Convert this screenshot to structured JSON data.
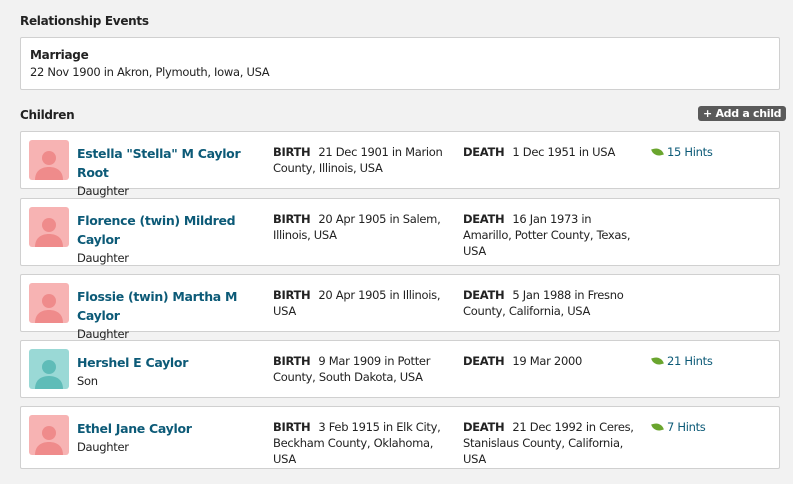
{
  "relationship_events": {
    "heading": "Relationship Events",
    "marriage": {
      "label": "Marriage",
      "detail": "22 Nov 1900 in Akron, Plymouth, Iowa, USA"
    }
  },
  "children": {
    "heading": "Children",
    "add_label": "+ Add a child",
    "items": [
      {
        "name": "Estella \"Stella\" M Caylor Root",
        "relation": "Daughter",
        "gender": "female",
        "birth": "21 Dec 1901  in Marion County, Illinois, USA",
        "death": "1 Dec 1951  in USA",
        "hints": "15 Hints"
      },
      {
        "name": "Florence (twin) Mildred Caylor",
        "relation": "Daughter",
        "gender": "female",
        "birth": "20 Apr 1905  in Salem, Illinois, USA",
        "death": "16 Jan 1973  in Amarillo, Potter County, Texas, USA",
        "hints": null
      },
      {
        "name": "Flossie (twin) Martha M Caylor",
        "relation": "Daughter",
        "gender": "female",
        "birth": "20 Apr 1905  in Illinois, USA",
        "death": "5 Jan 1988  in Fresno County, California, USA",
        "hints": null
      },
      {
        "name": "Hershel E Caylor",
        "relation": "Son",
        "gender": "male",
        "birth": "9 Mar 1909  in Potter County, South Dakota, USA",
        "death": "19 Mar 2000",
        "hints": "21 Hints"
      },
      {
        "name": "Ethel Jane Caylor",
        "relation": "Daughter",
        "gender": "female",
        "birth": "3 Feb 1915  in Elk City, Beckham County, Oklahoma, USA",
        "death": "21 Dec 1992  in Ceres, Stanislaus County, California, USA",
        "hints": "7 Hints"
      }
    ]
  },
  "labels": {
    "birth": "BIRTH",
    "death": "DEATH"
  },
  "colors": {
    "female_avatar": "#f7b3b3",
    "female_silhouette": "#ef8b8b",
    "male_avatar": "#9ad9d6",
    "male_silhouette": "#5fbcb8",
    "link": "#0c5a77",
    "hint_leaf": "#6aa52e"
  }
}
